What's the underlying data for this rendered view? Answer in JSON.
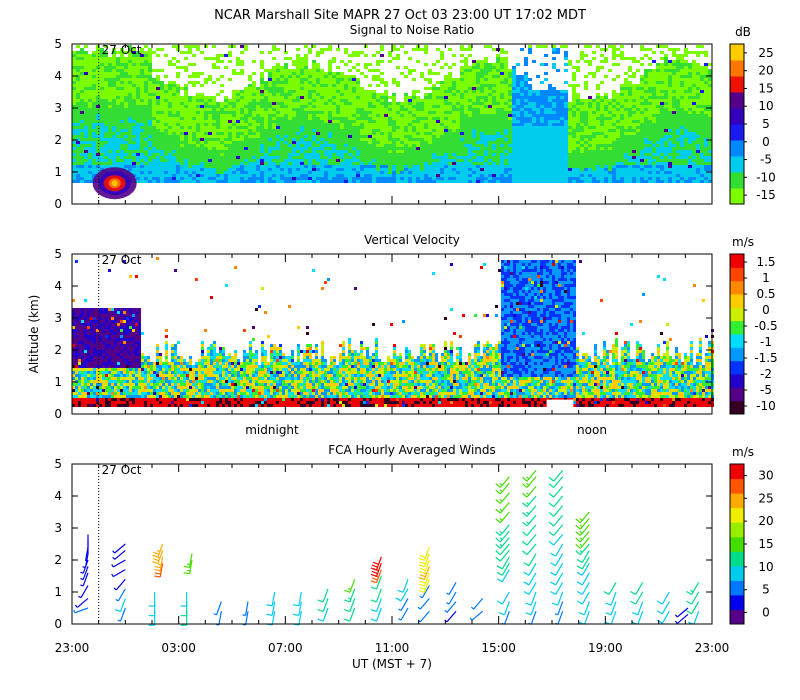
{
  "header": {
    "title": "NCAR Marshall Site   MAPR 27 Oct 03   23:00 UT   17:02   MDT"
  },
  "x_axis": {
    "ticks": [
      "23:00",
      "03:00",
      "07:00",
      "11:00",
      "15:00",
      "19:00",
      "23:00"
    ],
    "tick_hours": [
      0,
      4,
      8,
      12,
      16,
      20,
      24
    ],
    "label": "UT  (MST + 7)",
    "span_hours": 24,
    "date_marker": {
      "label": "27 Oct",
      "hour": 1
    },
    "midnight_label": "midnight",
    "midnight_hour": 7.5,
    "noon_label": "noon",
    "noon_hour": 19.5
  },
  "colors": {
    "dbz_scale": [
      "#7cfc00",
      "#33dd33",
      "#00ccee",
      "#0088ff",
      "#1a1aee",
      "#3300bb",
      "#55008a",
      "#ee1100",
      "#ff7700",
      "#ffcc00"
    ],
    "vel_scale": [
      "#330022",
      "#550088",
      "#2200cc",
      "#0033ff",
      "#0099ff",
      "#00ddff",
      "#33ee33",
      "#ccee00",
      "#ffcc00",
      "#ff8800",
      "#ff4400",
      "#ee0000"
    ],
    "wind_scale": [
      "#550088",
      "#0000ee",
      "#0077ff",
      "#00ccee",
      "#00dd88",
      "#44dd00",
      "#99ee00",
      "#eeee00",
      "#ffaa00",
      "#ff5500",
      "#ee0000"
    ]
  },
  "chart_data": [
    {
      "type": "heatmap",
      "title": "Signal to Noise Ratio",
      "ylabel": "",
      "y_ticks": [
        0,
        1,
        2,
        3,
        4,
        5
      ],
      "ylim": [
        0,
        5
      ],
      "unit": "dB",
      "colorbar_ticks": [
        25,
        20,
        15,
        10,
        5,
        0,
        -5,
        -10,
        -15
      ],
      "colorbar_range": [
        -17,
        28
      ]
    },
    {
      "type": "heatmap",
      "title": "Vertical Velocity",
      "ylabel": "Altitude (km)",
      "y_ticks": [
        0,
        1,
        2,
        3,
        4,
        5
      ],
      "ylim": [
        0,
        5
      ],
      "unit": "m/s",
      "colorbar_ticks": [
        "1.5",
        "1",
        "0.5",
        "0",
        "-0.5",
        "-1",
        "-1.5",
        "-2",
        "-5",
        "-10"
      ]
    },
    {
      "type": "scatter",
      "title": "FCA Hourly Averaged Winds",
      "ylabel": "",
      "y_ticks": [
        0,
        1,
        2,
        3,
        4,
        5
      ],
      "ylim": [
        0,
        5
      ],
      "unit": "m/s",
      "colorbar_ticks": [
        30,
        25,
        20,
        15,
        10,
        5,
        0
      ],
      "colorbar_range": [
        -1,
        32
      ],
      "profiles": [
        {
          "hour": 0.6,
          "alts": [
            0.5,
            0.8,
            1.2,
            1.6,
            1.8,
            2.0,
            2.2,
            2.4,
            2.6,
            2.8
          ],
          "speeds": [
            5,
            4,
            3,
            3,
            3,
            3,
            3,
            2,
            2,
            2
          ],
          "dirs": [
            250,
            230,
            210,
            200,
            200,
            200,
            190,
            190,
            180,
            180
          ]
        },
        {
          "hour": 2.0,
          "alts": [
            0.5,
            0.8,
            1.1,
            1.4,
            1.7,
            2.0,
            2.3,
            2.5
          ],
          "speeds": [
            7,
            8,
            6,
            4,
            3,
            3,
            3,
            4
          ],
          "dirs": [
            200,
            200,
            210,
            220,
            240,
            240,
            230,
            230
          ]
        },
        {
          "hour": 3.1,
          "alts": [
            0.4,
            0.7,
            1.0
          ],
          "speeds": [
            10,
            9,
            8
          ],
          "dirs": [
            180,
            180,
            180
          ]
        },
        {
          "hour": 3.4,
          "alts": [
            1.9,
            2.1,
            2.3,
            2.5
          ],
          "speeds": [
            26,
            25,
            25,
            24
          ],
          "dirs": [
            190,
            190,
            200,
            200
          ]
        },
        {
          "hour": 4.3,
          "alts": [
            0.4,
            0.7,
            1.0
          ],
          "speeds": [
            11,
            11,
            10
          ],
          "dirs": [
            180,
            180,
            180
          ]
        },
        {
          "hour": 4.5,
          "alts": [
            2.0,
            2.2
          ],
          "speeds": [
            16,
            16
          ],
          "dirs": [
            190,
            190
          ]
        },
        {
          "hour": 5.6,
          "alts": [
            0.4,
            0.7
          ],
          "speeds": [
            7,
            7
          ],
          "dirs": [
            190,
            200
          ]
        },
        {
          "hour": 6.6,
          "alts": [
            0.4,
            0.7
          ],
          "speeds": [
            6,
            6
          ],
          "dirs": [
            190,
            190
          ]
        },
        {
          "hour": 7.6,
          "alts": [
            0.4,
            0.7,
            1.0
          ],
          "speeds": [
            8,
            8,
            8
          ],
          "dirs": [
            190,
            190,
            190
          ]
        },
        {
          "hour": 8.6,
          "alts": [
            0.4,
            0.7,
            1.0
          ],
          "speeds": [
            9,
            9,
            9
          ],
          "dirs": [
            190,
            190,
            190
          ]
        },
        {
          "hour": 9.6,
          "alts": [
            0.5,
            0.8,
            1.1
          ],
          "speeds": [
            10,
            11,
            12
          ],
          "dirs": [
            200,
            200,
            200
          ]
        },
        {
          "hour": 10.6,
          "alts": [
            0.5,
            0.8,
            1.1,
            1.4
          ],
          "speeds": [
            11,
            12,
            13,
            14
          ],
          "dirs": [
            200,
            200,
            200,
            200
          ]
        },
        {
          "hour": 11.6,
          "alts": [
            0.5,
            0.8,
            1.1,
            1.5,
            1.7,
            1.9,
            2.1
          ],
          "speeds": [
            9,
            10,
            11,
            12,
            28,
            29,
            30
          ],
          "dirs": [
            200,
            200,
            200,
            200,
            200,
            200,
            200
          ]
        },
        {
          "hour": 12.6,
          "alts": [
            0.5,
            0.8,
            1.1,
            1.4
          ],
          "speeds": [
            6,
            7,
            8,
            9
          ],
          "dirs": [
            210,
            210,
            210,
            200
          ]
        },
        {
          "hour": 13.4,
          "alts": [
            0.4,
            0.8,
            1.2,
            1.4,
            1.6,
            1.8,
            2.0,
            2.2,
            2.4
          ],
          "speeds": [
            5,
            5,
            6,
            21,
            22,
            23,
            22,
            21,
            20
          ],
          "dirs": [
            220,
            220,
            210,
            200,
            200,
            200,
            200,
            200,
            200
          ]
        },
        {
          "hour": 14.4,
          "alts": [
            0.4,
            0.7,
            1.0,
            1.3
          ],
          "speeds": [
            4,
            5,
            5,
            5
          ],
          "dirs": [
            220,
            220,
            210,
            210
          ]
        },
        {
          "hour": 15.4,
          "alts": [
            0.4,
            0.8
          ],
          "speeds": [
            5,
            6
          ],
          "dirs": [
            230,
            220
          ]
        },
        {
          "hour": 16.4,
          "alts": [
            0.4,
            0.7,
            1.0,
            1.7,
            1.9,
            2.1,
            2.3,
            2.5,
            2.7,
            2.9,
            3.1,
            3.5,
            3.8,
            4.1,
            4.4,
            4.6
          ],
          "speeds": [
            7,
            8,
            9,
            10,
            11,
            11,
            12,
            12,
            13,
            13,
            13,
            14,
            14,
            14,
            15,
            15
          ],
          "dirs": [
            200,
            200,
            210,
            210,
            210,
            210,
            220,
            220,
            220,
            220,
            220,
            220,
            220,
            220,
            220,
            220
          ]
        },
        {
          "hour": 17.4,
          "alts": [
            0.4,
            0.7,
            1.0,
            1.3,
            1.6,
            1.9,
            2.2,
            2.5,
            2.8,
            3.1,
            3.4,
            3.7,
            4.0,
            4.3,
            4.6,
            4.8
          ],
          "speeds": [
            7,
            8,
            9,
            9,
            10,
            10,
            11,
            11,
            12,
            12,
            13,
            13,
            13,
            14,
            14,
            14
          ],
          "dirs": [
            200,
            200,
            200,
            210,
            210,
            210,
            210,
            220,
            220,
            220,
            220,
            220,
            220,
            220,
            220,
            220
          ]
        },
        {
          "hour": 18.4,
          "alts": [
            0.4,
            0.7,
            1.0,
            1.3,
            1.6,
            1.9,
            2.2,
            2.5,
            2.8,
            3.1,
            3.4,
            3.7,
            4.0,
            4.3,
            4.6,
            4.8
          ],
          "speeds": [
            7,
            7,
            8,
            8,
            9,
            9,
            9,
            10,
            10,
            11,
            11,
            11,
            12,
            12,
            12,
            12
          ],
          "dirs": [
            200,
            200,
            200,
            210,
            210,
            210,
            210,
            210,
            220,
            220,
            220,
            220,
            220,
            220,
            220,
            220
          ]
        },
        {
          "hour": 19.4,
          "alts": [
            0.4,
            0.7,
            1.0,
            1.3,
            1.6,
            1.9,
            2.1,
            2.3,
            2.5,
            2.7,
            2.9,
            3.1,
            3.3,
            3.5
          ],
          "speeds": [
            8,
            8,
            9,
            9,
            10,
            10,
            11,
            12,
            13,
            14,
            14,
            15,
            15,
            16
          ],
          "dirs": [
            200,
            200,
            210,
            210,
            210,
            210,
            210,
            210,
            220,
            220,
            220,
            220,
            220,
            220
          ]
        },
        {
          "hour": 20.4,
          "alts": [
            0.4,
            0.7,
            1.0,
            1.3
          ],
          "speeds": [
            9,
            10,
            10,
            11
          ],
          "dirs": [
            200,
            200,
            200,
            210
          ]
        },
        {
          "hour": 21.4,
          "alts": [
            0.4,
            0.7,
            1.0,
            1.3
          ],
          "speeds": [
            9,
            10,
            11,
            11
          ],
          "dirs": [
            200,
            200,
            210,
            210
          ]
        },
        {
          "hour": 22.4,
          "alts": [
            0.4,
            0.7,
            1.0
          ],
          "speeds": [
            8,
            9,
            10
          ],
          "dirs": [
            210,
            210,
            210
          ]
        },
        {
          "hour": 23.1,
          "alts": [
            0.3,
            0.5
          ],
          "speeds": [
            3,
            4
          ],
          "dirs": [
            230,
            230
          ]
        },
        {
          "hour": 23.5,
          "alts": [
            0.4,
            0.7,
            1.0,
            1.3
          ],
          "speeds": [
            10,
            11,
            12,
            13
          ],
          "dirs": [
            200,
            210,
            210,
            210
          ]
        }
      ]
    }
  ]
}
